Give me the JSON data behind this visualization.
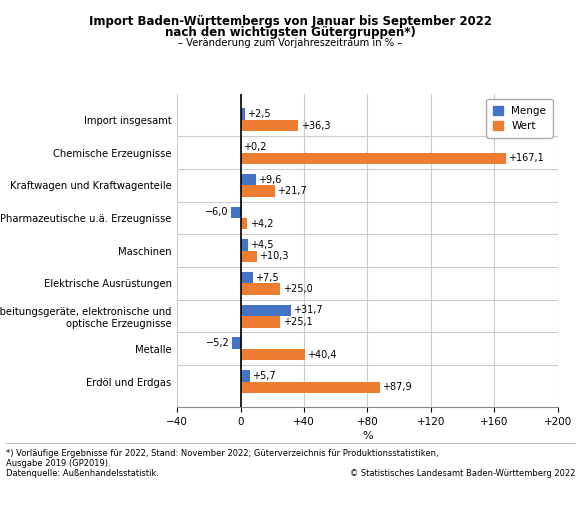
{
  "title_line1": "Import Baden-Württembergs von Januar bis September 2022",
  "title_line2": "nach den wichtigsten Gütergruppen*)",
  "subtitle": "– Veränderung zum Vorjahreszeitraum in % –",
  "categories": [
    "Import insgesamt",
    "Chemische Erzeugnisse",
    "Kraftwagen und Kraftwagenteile",
    "Pharmazeutische u.ä. Erzeugnisse",
    "Maschinen",
    "Elektrische Ausrüstungen",
    "Datenverarbeitungsgeräte, elektronische und\noptische Erzeugnisse",
    "Metalle",
    "Erdöl und Erdgas"
  ],
  "menge": [
    2.5,
    0.2,
    9.6,
    -6.0,
    4.5,
    7.5,
    31.7,
    -5.2,
    5.7
  ],
  "wert": [
    36.3,
    167.1,
    21.7,
    4.2,
    10.3,
    25.0,
    25.1,
    40.4,
    87.9
  ],
  "menge_labels": [
    "+2,5",
    "+0,2",
    "+9,6",
    "−6,0",
    "+4,5",
    "+7,5",
    "+31,7",
    "−5,2",
    "+5,7"
  ],
  "wert_labels": [
    "+36,3",
    "+167,1",
    "+21,7",
    "+4,2",
    "+10,3",
    "+25,0",
    "+25,1",
    "+40,4",
    "+87,9"
  ],
  "menge_color": "#4472C4",
  "wert_color": "#ED7D31",
  "xlim": [
    -40,
    200
  ],
  "xticks": [
    -40,
    0,
    40,
    80,
    120,
    160,
    200
  ],
  "xtick_labels": [
    "−40",
    "0",
    "+40",
    "+80",
    "+120",
    "+160",
    "+200"
  ],
  "xlabel": "%",
  "legend_menge": "Menge",
  "legend_wert": "Wert",
  "footnote1": "*) Vorläufige Ergebnisse für 2022, Stand: November 2022; Güterverzeichnis für Produktionsstatistiken,",
  "footnote2": "Ausgabe 2019 (GP2019).",
  "footnote3": "Datenquelle: Außenhandelsstatistik.",
  "footnote4": "© Statistisches Landesamt Baden-Württemberg 2022",
  "bg_color": "#ffffff",
  "grid_color": "#cccccc"
}
